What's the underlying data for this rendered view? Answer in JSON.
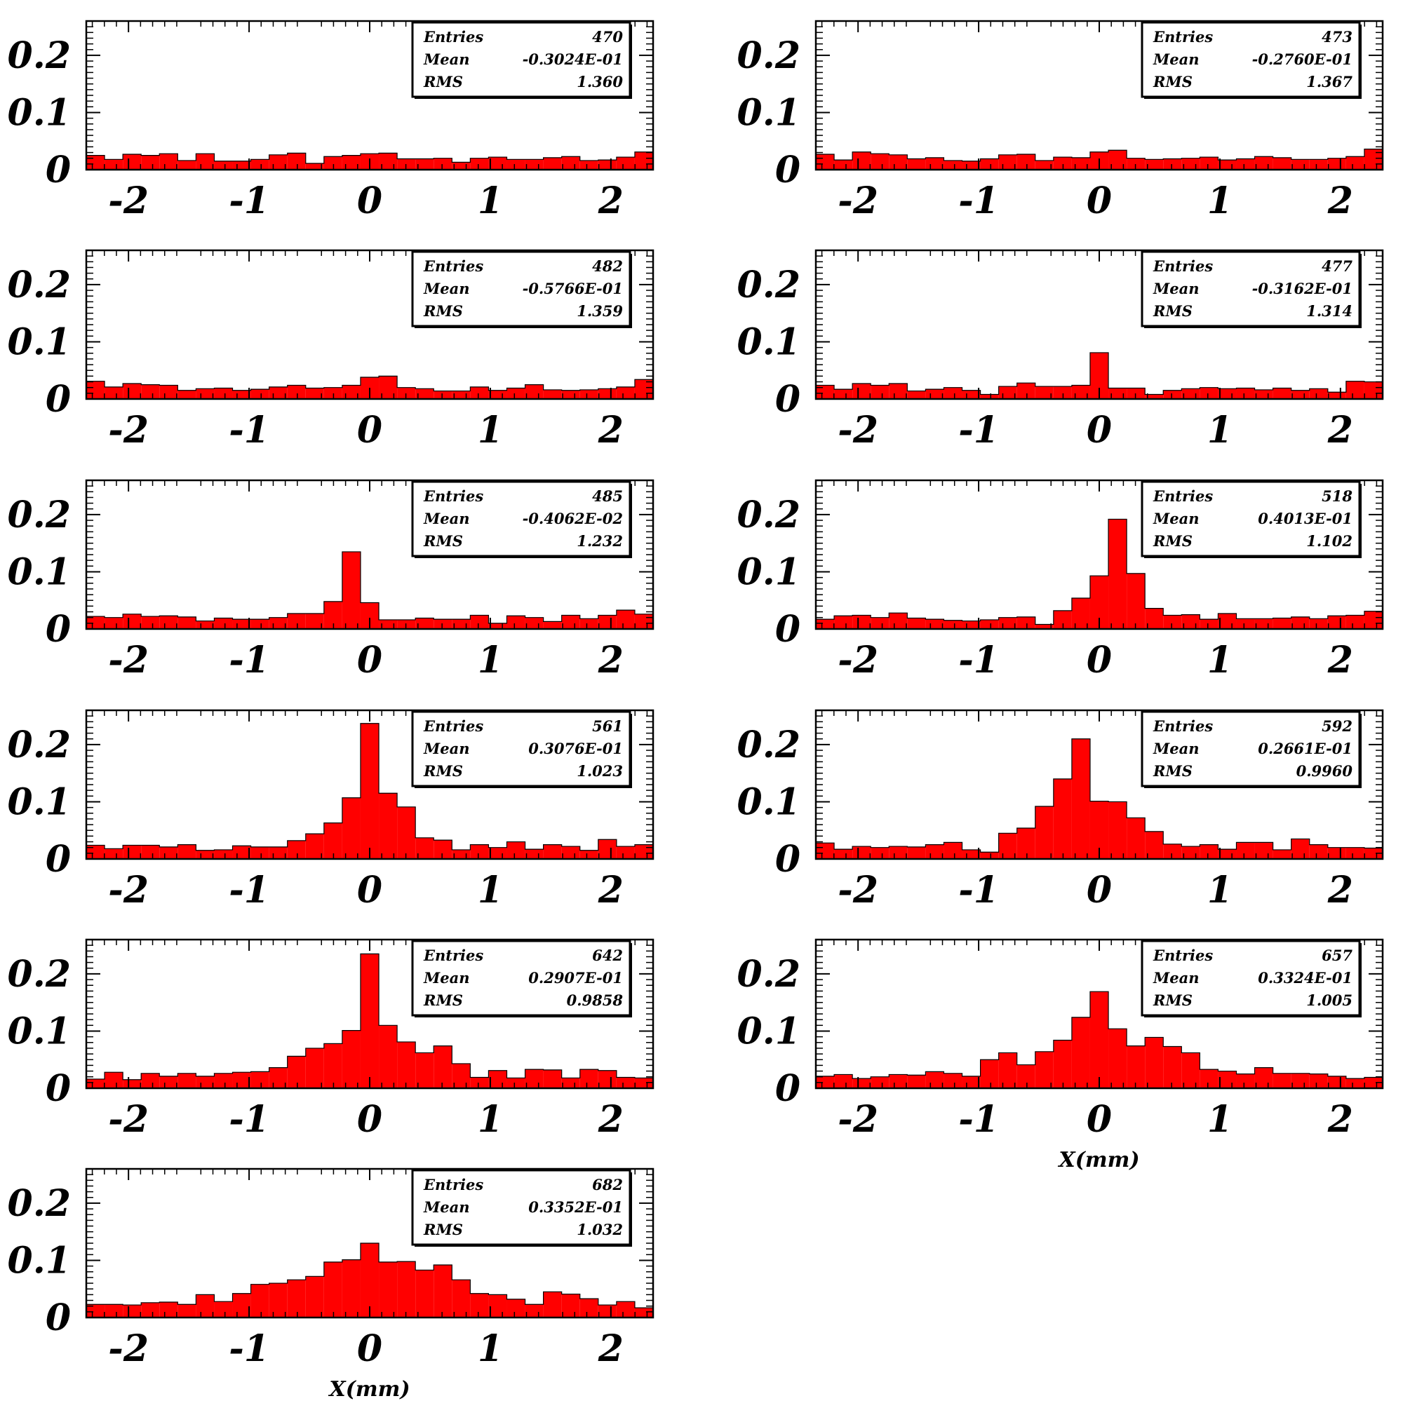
{
  "figure": {
    "bar_color": "#ff0000",
    "axis_color": "#000000",
    "stat_labels": [
      "Entries",
      "Mean",
      "RMS"
    ]
  },
  "chart_data": [
    {
      "type": "bar",
      "title": "",
      "xlabel": "",
      "ylabel": "",
      "xlim": [
        -2.35,
        2.35
      ],
      "ylim": [
        0,
        0.26
      ],
      "grid": false,
      "yticks": [
        "0",
        "0.1",
        "0.2"
      ],
      "xticks": [
        "-2",
        "-1",
        "0",
        "1",
        "2"
      ],
      "stats": {
        "entries": "470",
        "mean": "-0.3024E-01",
        "rms": "1.360"
      },
      "stats_position": "top-right",
      "values": [
        0.025,
        0.018,
        0.027,
        0.025,
        0.028,
        0.016,
        0.028,
        0.015,
        0.015,
        0.018,
        0.026,
        0.029,
        0.011,
        0.023,
        0.025,
        0.028,
        0.029,
        0.019,
        0.019,
        0.02,
        0.013,
        0.02,
        0.022,
        0.018,
        0.018,
        0.021,
        0.023,
        0.016,
        0.017,
        0.022,
        0.031
      ]
    },
    {
      "type": "bar",
      "title": "",
      "xlabel": "",
      "ylabel": "",
      "xlim": [
        -2.35,
        2.35
      ],
      "ylim": [
        0,
        0.26
      ],
      "grid": false,
      "yticks": [
        "0",
        "0.1",
        "0.2"
      ],
      "xticks": [
        "-2",
        "-1",
        "0",
        "1",
        "2"
      ],
      "stats": {
        "entries": "473",
        "mean": "-0.2760E-01",
        "rms": "1.367"
      },
      "stats_position": "top-right",
      "values": [
        0.027,
        0.017,
        0.031,
        0.028,
        0.026,
        0.019,
        0.021,
        0.016,
        0.015,
        0.019,
        0.026,
        0.027,
        0.016,
        0.022,
        0.021,
        0.031,
        0.034,
        0.02,
        0.018,
        0.019,
        0.02,
        0.022,
        0.017,
        0.019,
        0.023,
        0.021,
        0.018,
        0.018,
        0.02,
        0.023,
        0.036
      ]
    },
    {
      "type": "bar",
      "title": "",
      "xlabel": "",
      "ylabel": "",
      "xlim": [
        -2.35,
        2.35
      ],
      "ylim": [
        0,
        0.26
      ],
      "grid": false,
      "yticks": [
        "0",
        "0.1",
        "0.2"
      ],
      "xticks": [
        "-2",
        "-1",
        "0",
        "1",
        "2"
      ],
      "stats": {
        "entries": "482",
        "mean": "-0.5766E-01",
        "rms": "1.359"
      },
      "stats_position": "top-right",
      "values": [
        0.031,
        0.021,
        0.027,
        0.025,
        0.024,
        0.015,
        0.018,
        0.019,
        0.015,
        0.017,
        0.021,
        0.024,
        0.019,
        0.02,
        0.024,
        0.038,
        0.04,
        0.02,
        0.018,
        0.014,
        0.014,
        0.021,
        0.015,
        0.019,
        0.025,
        0.016,
        0.015,
        0.016,
        0.018,
        0.021,
        0.034
      ]
    },
    {
      "type": "bar",
      "title": "",
      "xlabel": "",
      "ylabel": "",
      "xlim": [
        -2.35,
        2.35
      ],
      "ylim": [
        0,
        0.26
      ],
      "grid": false,
      "yticks": [
        "0",
        "0.1",
        "0.2"
      ],
      "xticks": [
        "-2",
        "-1",
        "0",
        "1",
        "2"
      ],
      "stats": {
        "entries": "477",
        "mean": "-0.3162E-01",
        "rms": "1.314"
      },
      "stats_position": "top-right",
      "values": [
        0.024,
        0.017,
        0.027,
        0.024,
        0.027,
        0.014,
        0.017,
        0.02,
        0.015,
        0.008,
        0.022,
        0.028,
        0.022,
        0.022,
        0.024,
        0.081,
        0.019,
        0.019,
        0.008,
        0.015,
        0.018,
        0.02,
        0.018,
        0.019,
        0.016,
        0.019,
        0.015,
        0.018,
        0.012,
        0.031,
        0.03
      ]
    },
    {
      "type": "bar",
      "title": "",
      "xlabel": "",
      "ylabel": "",
      "xlim": [
        -2.35,
        2.35
      ],
      "ylim": [
        0,
        0.26
      ],
      "grid": false,
      "yticks": [
        "0",
        "0.1",
        "0.2"
      ],
      "xticks": [
        "-2",
        "-1",
        "0",
        "1",
        "2"
      ],
      "stats": {
        "entries": "485",
        "mean": "-0.4062E-02",
        "rms": "1.232"
      },
      "stats_position": "top-right",
      "values": [
        0.022,
        0.02,
        0.026,
        0.022,
        0.023,
        0.021,
        0.014,
        0.019,
        0.017,
        0.017,
        0.02,
        0.027,
        0.027,
        0.048,
        0.135,
        0.046,
        0.016,
        0.016,
        0.019,
        0.017,
        0.017,
        0.024,
        0.01,
        0.023,
        0.02,
        0.013,
        0.024,
        0.018,
        0.024,
        0.033,
        0.026
      ]
    },
    {
      "type": "bar",
      "title": "",
      "xlabel": "",
      "ylabel": "",
      "xlim": [
        -2.35,
        2.35
      ],
      "ylim": [
        0,
        0.26
      ],
      "grid": false,
      "yticks": [
        "0",
        "0.1",
        "0.2"
      ],
      "xticks": [
        "-2",
        "-1",
        "0",
        "1",
        "2"
      ],
      "stats": {
        "entries": "518",
        "mean": "0.4013E-01",
        "rms": "1.102"
      },
      "stats_position": "top-right",
      "values": [
        0.017,
        0.023,
        0.024,
        0.02,
        0.028,
        0.019,
        0.017,
        0.015,
        0.014,
        0.016,
        0.02,
        0.021,
        0.008,
        0.032,
        0.054,
        0.093,
        0.192,
        0.097,
        0.036,
        0.024,
        0.025,
        0.017,
        0.027,
        0.018,
        0.018,
        0.019,
        0.021,
        0.018,
        0.023,
        0.024,
        0.031
      ]
    },
    {
      "type": "bar",
      "title": "",
      "xlabel": "",
      "ylabel": "",
      "xlim": [
        -2.35,
        2.35
      ],
      "ylim": [
        0,
        0.26
      ],
      "grid": false,
      "yticks": [
        "0",
        "0.1",
        "0.2"
      ],
      "xticks": [
        "-2",
        "-1",
        "0",
        "1",
        "2"
      ],
      "stats": {
        "entries": "561",
        "mean": "0.3076E-01",
        "rms": "1.023"
      },
      "stats_position": "top-right",
      "values": [
        0.024,
        0.018,
        0.024,
        0.024,
        0.021,
        0.025,
        0.015,
        0.016,
        0.023,
        0.021,
        0.021,
        0.032,
        0.044,
        0.063,
        0.107,
        0.237,
        0.115,
        0.091,
        0.037,
        0.033,
        0.016,
        0.025,
        0.02,
        0.03,
        0.017,
        0.025,
        0.022,
        0.015,
        0.034,
        0.022,
        0.025
      ]
    },
    {
      "type": "bar",
      "title": "",
      "xlabel": "",
      "ylabel": "",
      "xlim": [
        -2.35,
        2.35
      ],
      "ylim": [
        0,
        0.26
      ],
      "grid": false,
      "yticks": [
        "0",
        "0.1",
        "0.2"
      ],
      "xticks": [
        "-2",
        "-1",
        "0",
        "1",
        "2"
      ],
      "stats": {
        "entries": "592",
        "mean": "0.2661E-01",
        "rms": "0.9960"
      },
      "stats_position": "top-right",
      "values": [
        0.028,
        0.017,
        0.022,
        0.02,
        0.022,
        0.021,
        0.025,
        0.029,
        0.016,
        0.012,
        0.045,
        0.054,
        0.092,
        0.14,
        0.21,
        0.101,
        0.1,
        0.072,
        0.048,
        0.026,
        0.022,
        0.025,
        0.017,
        0.029,
        0.029,
        0.016,
        0.035,
        0.025,
        0.02,
        0.02,
        0.019
      ]
    },
    {
      "type": "bar",
      "title": "",
      "xlabel": "",
      "ylabel": "",
      "xlim": [
        -2.35,
        2.35
      ],
      "ylim": [
        0,
        0.26
      ],
      "grid": false,
      "yticks": [
        "0",
        "0.1",
        "0.2"
      ],
      "xticks": [
        "-2",
        "-1",
        "0",
        "1",
        "2"
      ],
      "stats": {
        "entries": "642",
        "mean": "0.2907E-01",
        "rms": "0.9858"
      },
      "stats_position": "top-right",
      "values": [
        0.016,
        0.028,
        0.015,
        0.026,
        0.021,
        0.026,
        0.021,
        0.026,
        0.028,
        0.029,
        0.036,
        0.056,
        0.07,
        0.078,
        0.101,
        0.235,
        0.11,
        0.081,
        0.062,
        0.074,
        0.043,
        0.019,
        0.031,
        0.018,
        0.033,
        0.032,
        0.018,
        0.033,
        0.031,
        0.019,
        0.018
      ]
    },
    {
      "type": "bar",
      "title": "",
      "xlabel": "X(mm)",
      "ylabel": "",
      "xlim": [
        -2.35,
        2.35
      ],
      "ylim": [
        0,
        0.26
      ],
      "grid": false,
      "yticks": [
        "0",
        "0.1",
        "0.2"
      ],
      "xticks": [
        "-2",
        "-1",
        "0",
        "1",
        "2"
      ],
      "stats": {
        "entries": "657",
        "mean": "0.3324E-01",
        "rms": "1.005"
      },
      "stats_position": "top-right",
      "values": [
        0.021,
        0.024,
        0.017,
        0.02,
        0.024,
        0.023,
        0.029,
        0.026,
        0.021,
        0.05,
        0.062,
        0.041,
        0.064,
        0.084,
        0.124,
        0.169,
        0.104,
        0.074,
        0.089,
        0.073,
        0.062,
        0.033,
        0.03,
        0.025,
        0.036,
        0.026,
        0.026,
        0.025,
        0.021,
        0.017,
        0.019
      ]
    },
    {
      "type": "bar",
      "title": "",
      "xlabel": "X(mm)",
      "ylabel": "",
      "xlim": [
        -2.35,
        2.35
      ],
      "ylim": [
        0,
        0.26
      ],
      "grid": false,
      "yticks": [
        "0",
        "0.1",
        "0.2"
      ],
      "xticks": [
        "-2",
        "-1",
        "0",
        "1",
        "2"
      ],
      "stats": {
        "entries": "682",
        "mean": "0.3352E-01",
        "rms": "1.032"
      },
      "stats_position": "top-right",
      "values": [
        0.023,
        0.023,
        0.022,
        0.026,
        0.027,
        0.023,
        0.04,
        0.028,
        0.042,
        0.058,
        0.06,
        0.066,
        0.072,
        0.097,
        0.101,
        0.13,
        0.097,
        0.098,
        0.083,
        0.092,
        0.066,
        0.042,
        0.04,
        0.032,
        0.023,
        0.045,
        0.041,
        0.033,
        0.022,
        0.028,
        0.017
      ]
    }
  ]
}
